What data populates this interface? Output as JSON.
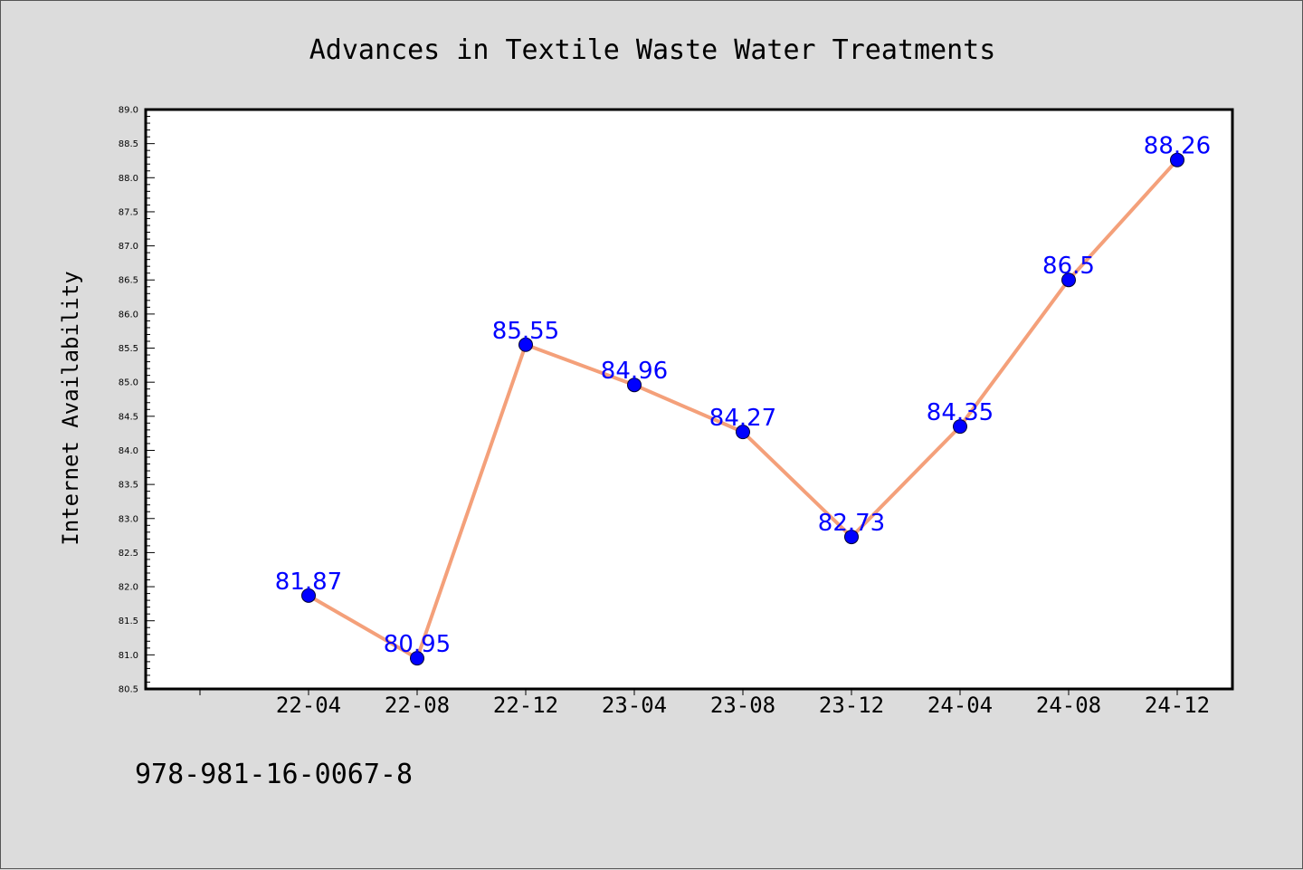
{
  "chart_data": {
    "type": "line",
    "title": "Advances in Textile Waste Water Treatments",
    "xlabel": "",
    "ylabel": "Internet Availability",
    "categories": [
      "22-04",
      "22-08",
      "22-12",
      "23-04",
      "23-08",
      "23-12",
      "24-04",
      "24-08",
      "24-12"
    ],
    "values": [
      81.87,
      80.95,
      85.55,
      84.96,
      84.27,
      82.73,
      84.35,
      86.5,
      88.26
    ],
    "data_labels": [
      "81.87",
      "80.95",
      "85.55",
      "84.96",
      "84.27",
      "82.73",
      "84.35",
      "86.5",
      "88.26"
    ],
    "ylim": [
      80.5,
      89.0
    ],
    "yticks": [
      "80.5",
      "81.0",
      "81.5",
      "82.0",
      "82.5",
      "83.0",
      "83.5",
      "84.0",
      "84.5",
      "85.0",
      "85.5",
      "86.0",
      "86.5",
      "87.0",
      "87.5",
      "88.0",
      "88.5",
      "89.0"
    ],
    "grid": false,
    "line_color": "#f4a07a",
    "marker_color": "#0000ff",
    "label_color": "#0000ff"
  },
  "footnote": "978-981-16-0067-8"
}
